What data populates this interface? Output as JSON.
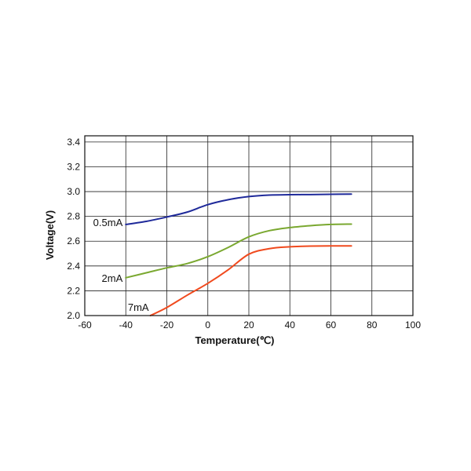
{
  "chart_data": {
    "type": "line",
    "title": "",
    "xlabel": "Temperature(℃)",
    "ylabel": "Voltage(V)",
    "xlim": [
      -60,
      100
    ],
    "ylim": [
      2.0,
      3.45
    ],
    "x_ticks": [
      "-60",
      "-40",
      "-20",
      "0",
      "20",
      "40",
      "60",
      "80",
      "100"
    ],
    "y_ticks": [
      "2.0",
      "2.2",
      "2.4",
      "2.6",
      "2.8",
      "3.0",
      "3.2",
      "3.4"
    ],
    "grid": true,
    "legend": "inline labels",
    "series": [
      {
        "name": "0.5mA",
        "color": "#1f2a9a",
        "points": [
          [
            -40,
            2.735
          ],
          [
            -30,
            2.76
          ],
          [
            -20,
            2.795
          ],
          [
            -10,
            2.835
          ],
          [
            0,
            2.895
          ],
          [
            10,
            2.935
          ],
          [
            20,
            2.96
          ],
          [
            30,
            2.972
          ],
          [
            40,
            2.975
          ],
          [
            50,
            2.976
          ],
          [
            60,
            2.978
          ],
          [
            70,
            2.98
          ]
        ]
      },
      {
        "name": "2mA",
        "color": "#7aa830",
        "points": [
          [
            -40,
            2.305
          ],
          [
            -30,
            2.345
          ],
          [
            -20,
            2.385
          ],
          [
            -10,
            2.42
          ],
          [
            0,
            2.475
          ],
          [
            10,
            2.55
          ],
          [
            20,
            2.635
          ],
          [
            30,
            2.685
          ],
          [
            40,
            2.71
          ],
          [
            50,
            2.725
          ],
          [
            60,
            2.735
          ],
          [
            70,
            2.738
          ]
        ]
      },
      {
        "name": "7mA",
        "color": "#f04a1e",
        "points": [
          [
            -28,
            2.0
          ],
          [
            -20,
            2.065
          ],
          [
            -10,
            2.165
          ],
          [
            0,
            2.26
          ],
          [
            10,
            2.37
          ],
          [
            20,
            2.495
          ],
          [
            30,
            2.54
          ],
          [
            40,
            2.555
          ],
          [
            50,
            2.56
          ],
          [
            60,
            2.562
          ],
          [
            70,
            2.562
          ]
        ]
      }
    ]
  }
}
